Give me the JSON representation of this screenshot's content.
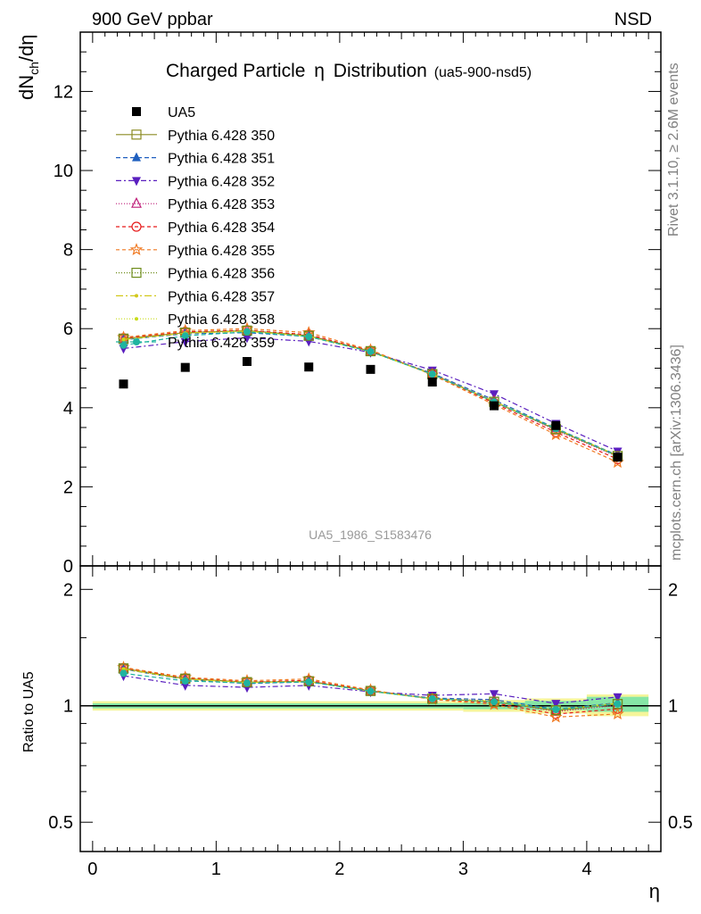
{
  "header": {
    "left": "900 GeV ppbar",
    "right": "NSD",
    "main_title": "Charged Particle",
    "main_title_symbol": "η",
    "main_title_tail": "Distribution",
    "subtitle": "(ua5-900-nsd5)",
    "watermark": "UA5_1986_S1583476"
  },
  "side_labels": {
    "rivet": "Rivet 3.1.10, ≥ 2.6M events",
    "mcplots": "mcplots.cern.ch [arXiv:1306.3436]"
  },
  "axis_labels": {
    "upper_y": {
      "base": "dN",
      "sub": "ch",
      "tail": "/dη"
    },
    "lower_y": "Ratio to UA5",
    "x": "η"
  },
  "chart_data": [
    {
      "type": "line",
      "panel": "main",
      "xlim": [
        -0.1,
        4.6
      ],
      "ylim": [
        0,
        13.5
      ],
      "x_ticks": [
        0,
        1,
        2,
        3,
        4
      ],
      "x_tick_labels": [
        "0",
        "1",
        "2",
        "3",
        "4"
      ],
      "y_ticks": [
        0,
        2,
        4,
        6,
        8,
        10,
        12
      ],
      "y_tick_labels": [
        "0",
        "2",
        "4",
        "6",
        "8",
        "10",
        "12"
      ],
      "x": [
        0.25,
        0.75,
        1.25,
        1.75,
        2.25,
        2.75,
        3.25,
        3.75,
        4.25
      ],
      "data": {
        "name": "UA5",
        "color": "#000000",
        "marker": "square",
        "values": [
          4.6,
          5.02,
          5.17,
          5.03,
          4.97,
          4.65,
          4.05,
          3.55,
          2.75
        ]
      },
      "series": [
        {
          "name": "Pythia 6.428 350",
          "color": "#8c8c23",
          "dash": "solid",
          "marker": "open-square",
          "values": [
            5.75,
            5.9,
            5.95,
            5.82,
            5.43,
            4.85,
            4.15,
            3.45,
            2.78
          ]
        },
        {
          "name": "Pythia 6.428 351",
          "color": "#1f5fbf",
          "dash": "5,3",
          "marker": "triangle-up",
          "values": [
            5.72,
            5.87,
            5.9,
            5.8,
            5.42,
            4.87,
            4.2,
            3.48,
            2.8
          ]
        },
        {
          "name": "Pythia 6.428 352",
          "color": "#5a1fbf",
          "dash": "6,3,2,3",
          "marker": "triangle-down",
          "values": [
            5.5,
            5.67,
            5.77,
            5.68,
            5.4,
            4.95,
            4.35,
            3.6,
            2.9
          ]
        },
        {
          "name": "Pythia 6.428 353",
          "color": "#bf1f7a",
          "dash": "1,2",
          "marker": "open-triangle",
          "values": [
            5.74,
            5.9,
            5.95,
            5.83,
            5.43,
            4.86,
            4.17,
            3.43,
            2.76
          ]
        },
        {
          "name": "Pythia 6.428 354",
          "color": "#e61a1a",
          "dash": "4,3",
          "marker": "open-circle",
          "values": [
            5.76,
            5.92,
            5.96,
            5.85,
            5.44,
            4.85,
            4.12,
            3.38,
            2.7
          ]
        },
        {
          "name": "Pythia 6.428 355",
          "color": "#f07820",
          "dash": "4,3",
          "marker": "open-star",
          "values": [
            5.78,
            5.95,
            6.0,
            5.9,
            5.46,
            4.83,
            4.08,
            3.32,
            2.62
          ]
        },
        {
          "name": "Pythia 6.428 356",
          "color": "#6e8c1a",
          "dash": "1,2",
          "marker": "open-square",
          "values": [
            5.74,
            5.9,
            5.95,
            5.82,
            5.43,
            4.85,
            4.15,
            3.46,
            2.78
          ]
        },
        {
          "name": "Pythia 6.428 357",
          "color": "#d2c81a",
          "dash": "8,3,2,3",
          "marker": "dot",
          "values": [
            5.73,
            5.89,
            5.94,
            5.81,
            5.42,
            4.85,
            4.16,
            3.47,
            2.79
          ]
        },
        {
          "name": "Pythia 6.428 358",
          "color": "#c8dc1a",
          "dash": "1,2",
          "marker": "dot",
          "values": [
            5.72,
            5.88,
            5.93,
            5.8,
            5.41,
            4.85,
            4.16,
            3.47,
            2.79
          ]
        },
        {
          "name": "Pythia 6.428 359",
          "color": "#1fb4a0",
          "dash": "5,3",
          "marker": "circle",
          "values": [
            5.58,
            5.82,
            5.92,
            5.8,
            5.42,
            4.85,
            4.15,
            3.47,
            2.78
          ]
        }
      ]
    },
    {
      "type": "line",
      "panel": "ratio",
      "ylabel": "Ratio to UA5",
      "log_scale": true,
      "ylim": [
        0.42,
        2.3
      ],
      "y_ticks": [
        0.5,
        1,
        2
      ],
      "y_tick_labels": [
        "0.5",
        "1",
        "2"
      ],
      "bands": [
        {
          "x_from": 0.0,
          "x_to": 3.0,
          "outer": [
            0.972,
            1.028
          ],
          "inner": [
            0.985,
            1.015
          ]
        },
        {
          "x_from": 3.0,
          "x_to": 3.5,
          "outer": [
            0.965,
            1.035
          ],
          "inner": [
            0.98,
            1.02
          ]
        },
        {
          "x_from": 3.5,
          "x_to": 4.0,
          "outer": [
            0.955,
            1.045
          ],
          "inner": [
            0.975,
            1.03
          ]
        },
        {
          "x_from": 4.0,
          "x_to": 4.5,
          "outer": [
            0.94,
            1.07
          ],
          "inner": [
            0.965,
            1.055
          ]
        }
      ]
    }
  ]
}
